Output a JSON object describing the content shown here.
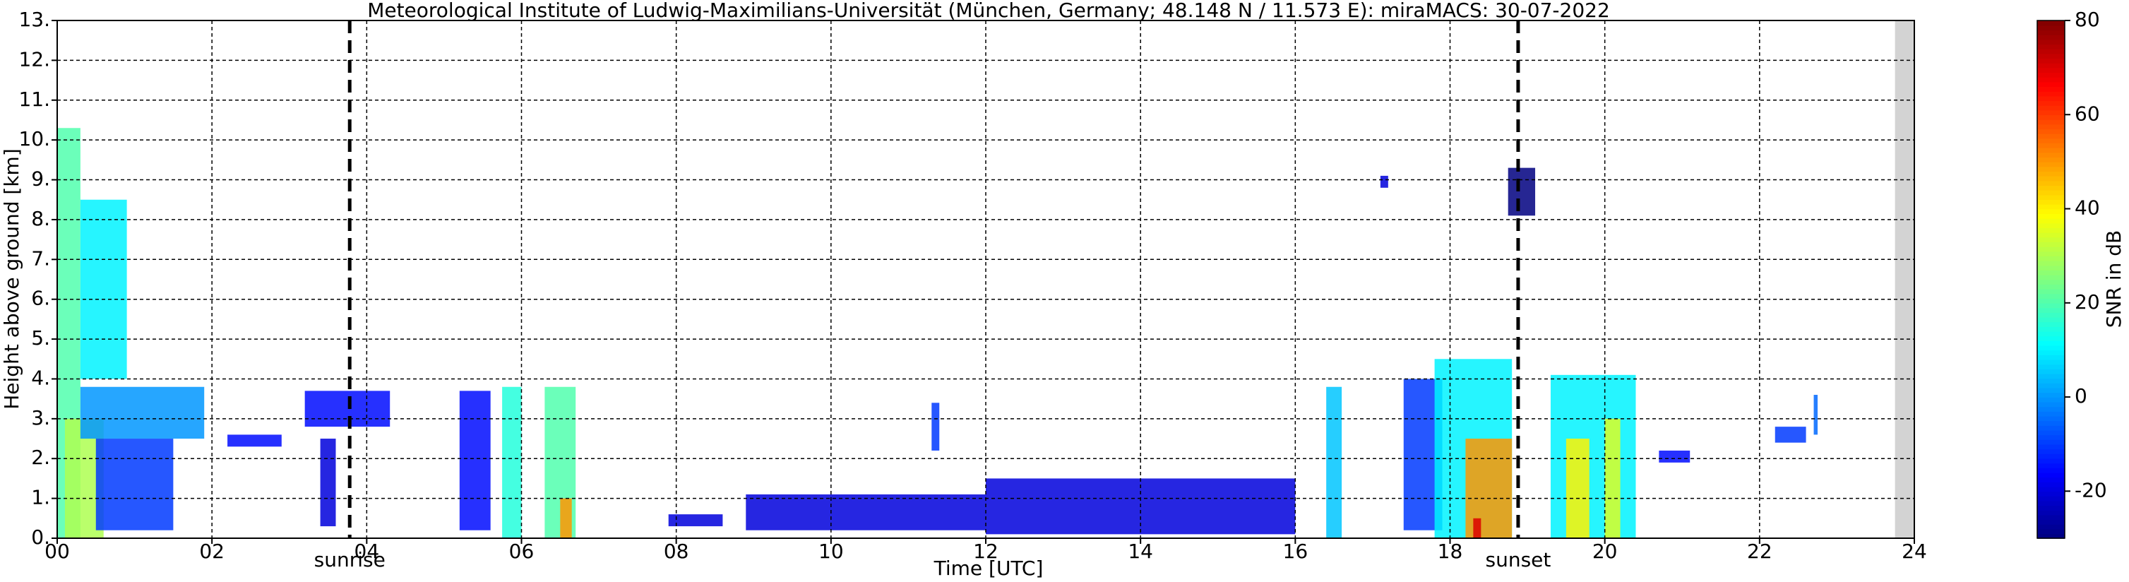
{
  "chart_data": {
    "type": "heatmap",
    "title": "Meteorological Institute of Ludwig-Maximilians-Universität (München, Germany; 48.148 N / 11.573 E):    miraMACS: 30-07-2022",
    "xlabel": "Time [UTC]",
    "ylabel": "Height above ground [km]",
    "colorbar_label": "SNR in dB",
    "xlim": [
      0,
      24
    ],
    "ylim": [
      0,
      13
    ],
    "clim": [
      -30,
      80
    ],
    "colormap": "jet",
    "grid": true,
    "xticks": [
      {
        "value": 0,
        "label": "00"
      },
      {
        "value": 2,
        "label": "02"
      },
      {
        "value": 4,
        "label": "04"
      },
      {
        "value": 6,
        "label": "06"
      },
      {
        "value": 8,
        "label": "08"
      },
      {
        "value": 10,
        "label": "10"
      },
      {
        "value": 12,
        "label": "12"
      },
      {
        "value": 14,
        "label": "14"
      },
      {
        "value": 16,
        "label": "16"
      },
      {
        "value": 18,
        "label": "18"
      },
      {
        "value": 20,
        "label": "20"
      },
      {
        "value": 22,
        "label": "22"
      },
      {
        "value": 24,
        "label": "24"
      }
    ],
    "yticks": [
      {
        "value": 0,
        "label": "0."
      },
      {
        "value": 1,
        "label": "1."
      },
      {
        "value": 2,
        "label": "2."
      },
      {
        "value": 3,
        "label": "3."
      },
      {
        "value": 4,
        "label": "4."
      },
      {
        "value": 5,
        "label": "5."
      },
      {
        "value": 6,
        "label": "6."
      },
      {
        "value": 7,
        "label": "7."
      },
      {
        "value": 8,
        "label": "8."
      },
      {
        "value": 9,
        "label": "9."
      },
      {
        "value": 10,
        "label": "10."
      },
      {
        "value": 11,
        "label": "11."
      },
      {
        "value": 12,
        "label": "12."
      },
      {
        "value": 13,
        "label": "13."
      }
    ],
    "cticks": [
      -20,
      0,
      20,
      40,
      60,
      80
    ],
    "data_end": 23.75,
    "sun_events": [
      {
        "label": "sunrise",
        "time": 3.78
      },
      {
        "label": "sunset",
        "time": 18.88
      }
    ],
    "echoes": [
      {
        "time": [
          0,
          0.3
        ],
        "height": [
          0,
          10.3
        ],
        "snr": 20
      },
      {
        "time": [
          0.3,
          0.9
        ],
        "height": [
          4,
          8.5
        ],
        "snr": 10
      },
      {
        "time": [
          0.1,
          0.6
        ],
        "height": [
          0,
          3
        ],
        "snr": 30
      },
      {
        "time": [
          0.3,
          1.9
        ],
        "height": [
          2.5,
          3.8
        ],
        "snr": 0
      },
      {
        "time": [
          0.5,
          1.5
        ],
        "height": [
          0.2,
          2.5
        ],
        "snr": -10
      },
      {
        "time": [
          2.2,
          2.9
        ],
        "height": [
          2.3,
          2.6
        ],
        "snr": -15
      },
      {
        "time": [
          3.2,
          4.3
        ],
        "height": [
          2.8,
          3.7
        ],
        "snr": -15
      },
      {
        "time": [
          3.4,
          3.6
        ],
        "height": [
          0.3,
          2.5
        ],
        "snr": -20
      },
      {
        "time": [
          5.2,
          5.6
        ],
        "height": [
          0.2,
          3.7
        ],
        "snr": -15
      },
      {
        "time": [
          5.75,
          6.0
        ],
        "height": [
          0,
          3.8
        ],
        "snr": 15
      },
      {
        "time": [
          6.3,
          6.7
        ],
        "height": [
          0,
          3.8
        ],
        "snr": 20
      },
      {
        "time": [
          6.5,
          6.65
        ],
        "height": [
          0,
          1
        ],
        "snr": 50
      },
      {
        "time": [
          7.9,
          8.6
        ],
        "height": [
          0.3,
          0.6
        ],
        "snr": -20
      },
      {
        "time": [
          8.9,
          12
        ],
        "height": [
          0.2,
          1.1
        ],
        "snr": -20
      },
      {
        "time": [
          12,
          16
        ],
        "height": [
          0.1,
          1.5
        ],
        "snr": -20
      },
      {
        "time": [
          11.3,
          11.4
        ],
        "height": [
          2.2,
          3.4
        ],
        "snr": -10
      },
      {
        "time": [
          16.4,
          16.6
        ],
        "height": [
          0,
          3.8
        ],
        "snr": 5
      },
      {
        "time": [
          17.1,
          17.2
        ],
        "height": [
          8.8,
          9.1
        ],
        "snr": -20
      },
      {
        "time": [
          17.4,
          17.9
        ],
        "height": [
          0.2,
          4.0
        ],
        "snr": -10
      },
      {
        "time": [
          17.8,
          18.8
        ],
        "height": [
          0,
          4.5
        ],
        "snr": 10
      },
      {
        "time": [
          18.2,
          18.8
        ],
        "height": [
          0,
          2.5
        ],
        "snr": 50
      },
      {
        "time": [
          18.3,
          18.4
        ],
        "height": [
          0,
          0.5
        ],
        "snr": 70
      },
      {
        "time": [
          18.75,
          19.1
        ],
        "height": [
          8.1,
          9.3
        ],
        "snr": -30
      },
      {
        "time": [
          19.3,
          20.4
        ],
        "height": [
          0,
          4.1
        ],
        "snr": 10
      },
      {
        "time": [
          19.5,
          19.8
        ],
        "height": [
          0,
          2.5
        ],
        "snr": 40
      },
      {
        "time": [
          20.0,
          20.2
        ],
        "height": [
          0,
          3
        ],
        "snr": 35
      },
      {
        "time": [
          20.7,
          21.1
        ],
        "height": [
          1.9,
          2.2
        ],
        "snr": -15
      },
      {
        "time": [
          22.2,
          22.6
        ],
        "height": [
          2.4,
          2.8
        ],
        "snr": -10
      },
      {
        "time": [
          22.7,
          22.75
        ],
        "height": [
          2.6,
          3.6
        ],
        "snr": -5
      }
    ]
  }
}
